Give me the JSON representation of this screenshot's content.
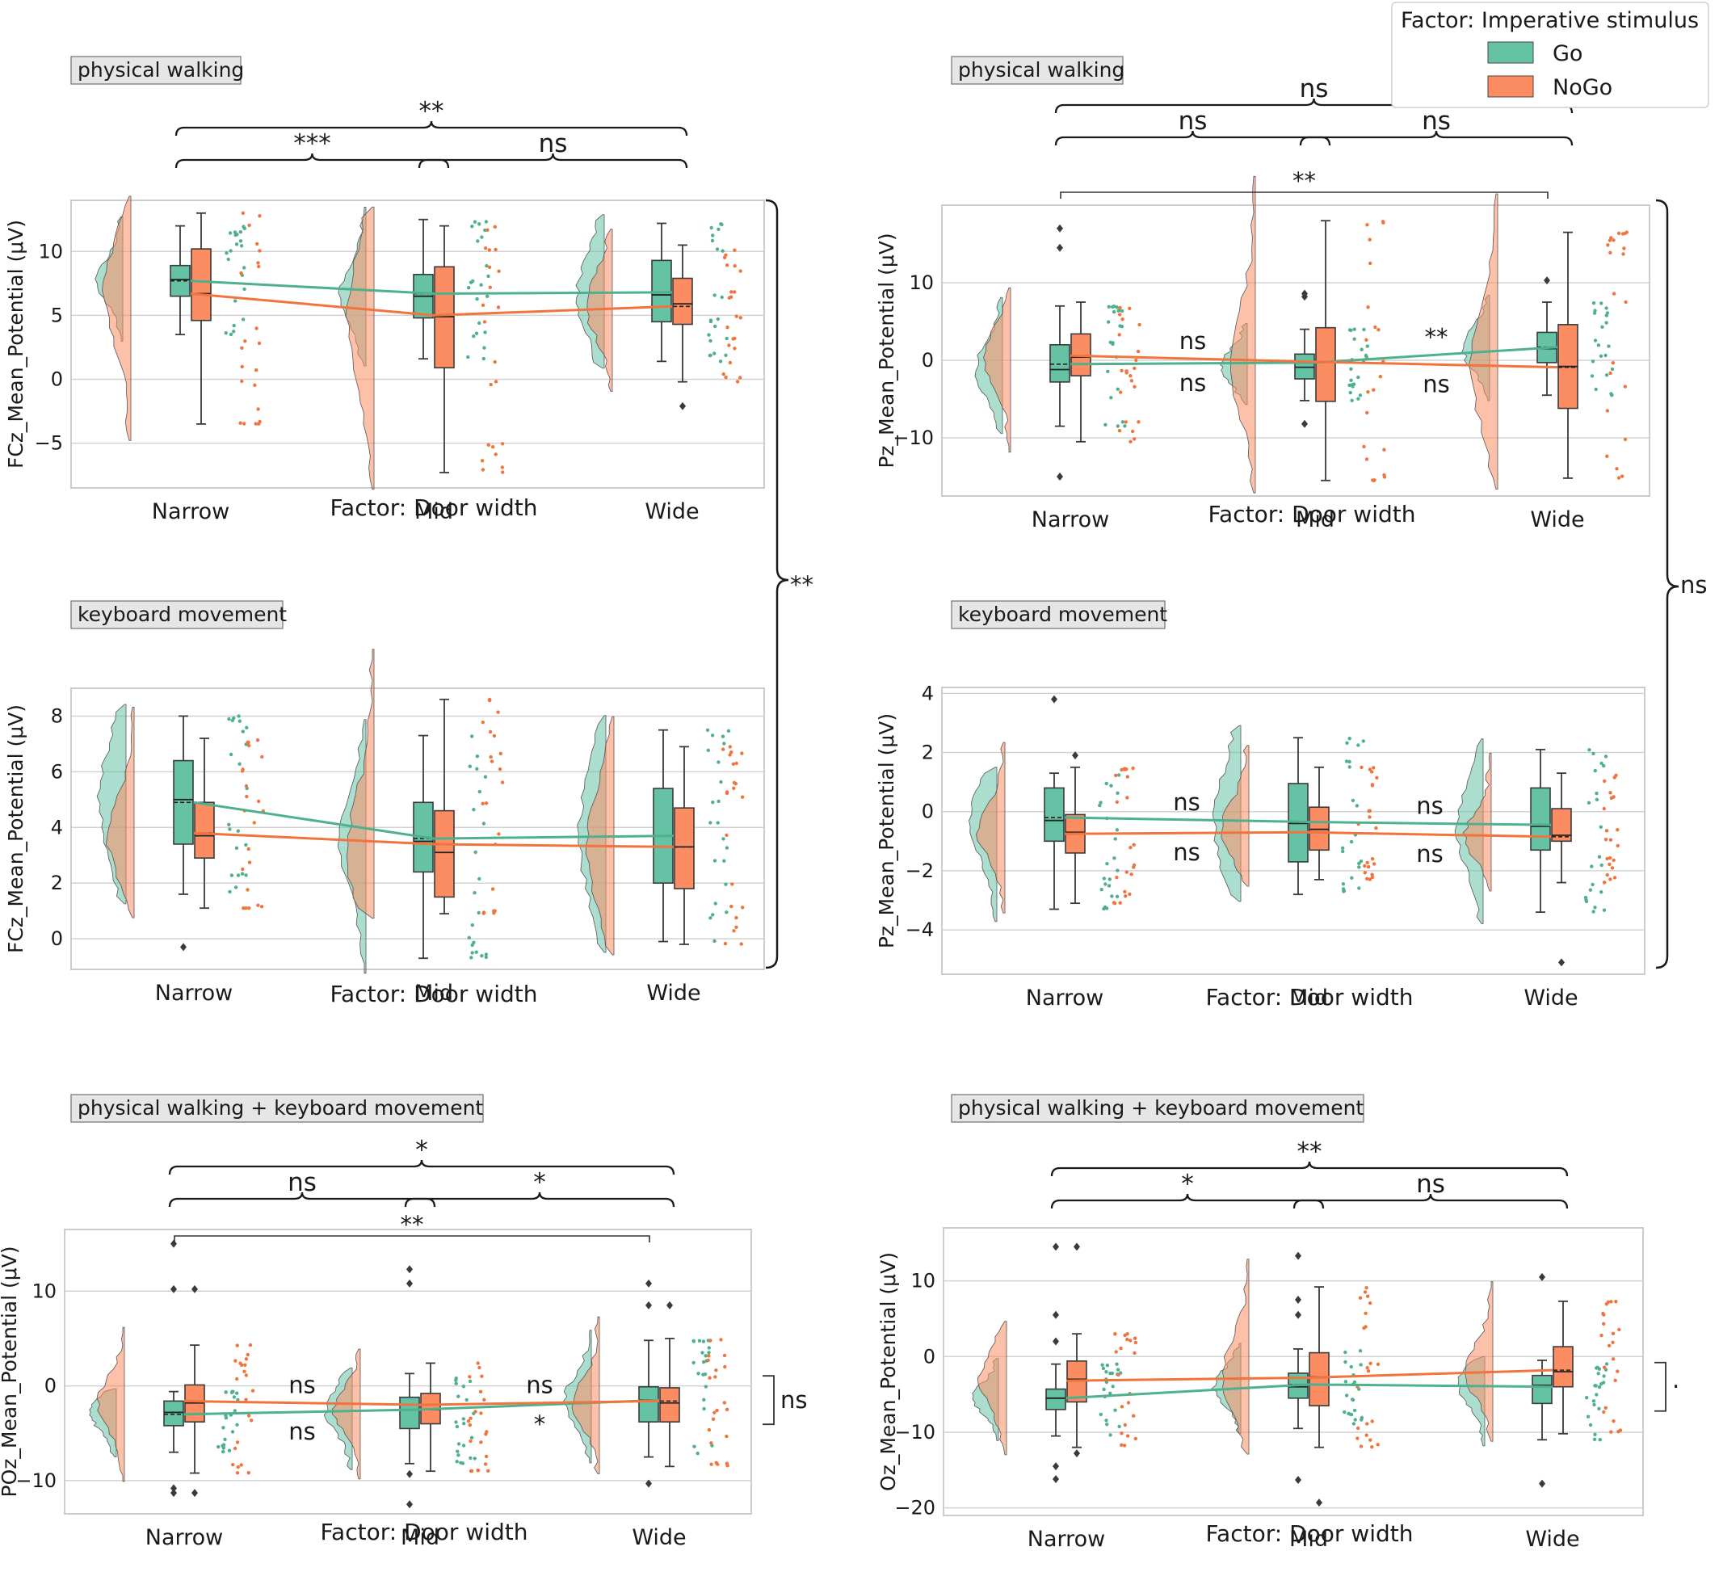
{
  "legend": {
    "title": "Factor: Imperative stimulus",
    "items": [
      {
        "label": "Go",
        "color": "#66c2a5"
      },
      {
        "label": "NoGo",
        "color": "#fc8d62"
      }
    ]
  },
  "colors": {
    "go": "#66c2a5",
    "nogo": "#fc8d62",
    "go_mark": "#4fb08e",
    "nogo_mark": "#f0743e"
  },
  "side_brackets": [
    {
      "label": "**"
    },
    {
      "label": "ns"
    }
  ],
  "chart_data": [
    {
      "type": "raincloud",
      "panel_label": "physical walking",
      "xlabel": "Factor: Door width",
      "ylabel": "FCz_Mean_Potential (μV)",
      "categories": [
        "Narrow",
        "Mid",
        "Wide"
      ],
      "ylim": [
        -8.5,
        14
      ],
      "yticks": [
        10,
        5,
        0,
        -5
      ],
      "ytick_labels": [
        "10",
        "5",
        "0",
        "−5"
      ],
      "grid": true,
      "series": [
        {
          "name": "Go",
          "means": [
            7.7,
            6.7,
            6.8
          ],
          "boxes": [
            {
              "q1": 6.5,
              "median": 7.8,
              "q3": 8.9,
              "lo": 3.5,
              "hi": 12,
              "outliers": []
            },
            {
              "q1": 4.8,
              "median": 6.5,
              "q3": 8.2,
              "lo": 1.6,
              "hi": 12.5,
              "outliers": []
            },
            {
              "q1": 4.5,
              "median": 6.6,
              "q3": 9.3,
              "lo": 1.4,
              "hi": 12.2,
              "outliers": []
            }
          ]
        },
        {
          "name": "NoGo",
          "means": [
            6.7,
            5.0,
            5.7
          ],
          "boxes": [
            {
              "q1": 4.6,
              "median": 6.7,
              "q3": 10.2,
              "lo": -3.5,
              "hi": 13,
              "outliers": []
            },
            {
              "q1": 0.9,
              "median": 4.9,
              "q3": 8.8,
              "lo": -7.3,
              "hi": 12,
              "outliers": []
            },
            {
              "q1": 4.3,
              "median": 5.9,
              "q3": 7.9,
              "lo": -0.2,
              "hi": 10.5,
              "outliers": [
                -2.1
              ]
            }
          ]
        }
      ],
      "annotations": {
        "between": [
          {
            "top": "",
            "bottom": ""
          },
          {
            "top": "",
            "bottom": ""
          }
        ],
        "brackets": [
          {
            "from": "Narrow",
            "to": "Mid",
            "label": "***",
            "level": 1
          },
          {
            "from": "Mid",
            "to": "Wide",
            "label": "ns",
            "level": 1
          },
          {
            "from": "Narrow",
            "to": "Wide",
            "label": "**",
            "level": 2
          }
        ],
        "lines": []
      }
    },
    {
      "type": "raincloud",
      "panel_label": "physical walking",
      "xlabel": "Factor: Door width",
      "ylabel": "Pz_Mean_Potential (μV)",
      "categories": [
        "Narrow",
        "Mid",
        "Wide"
      ],
      "ylim": [
        -17.5,
        20
      ],
      "yticks": [
        10,
        0,
        -10
      ],
      "ytick_labels": [
        "10",
        "0",
        "−10"
      ],
      "grid": true,
      "series": [
        {
          "name": "Go",
          "means": [
            -0.5,
            -0.3,
            1.7
          ],
          "boxes": [
            {
              "q1": -2.8,
              "median": -1.2,
              "q3": 2.0,
              "lo": -8.5,
              "hi": 7.0,
              "outliers": [
                -15,
                14.5,
                17
              ]
            },
            {
              "q1": -2.4,
              "median": -0.9,
              "q3": 0.8,
              "lo": -5.2,
              "hi": 4.0,
              "outliers": [
                -8.2,
                8.2,
                8.6
              ]
            },
            {
              "q1": -0.3,
              "median": 1.5,
              "q3": 3.6,
              "lo": -4.5,
              "hi": 7.5,
              "outliers": [
                10.3
              ]
            }
          ]
        },
        {
          "name": "NoGo",
          "means": [
            0.6,
            -0.2,
            -0.9
          ],
          "boxes": [
            {
              "q1": -2.0,
              "median": 0.4,
              "q3": 3.4,
              "lo": -10.5,
              "hi": 7.5,
              "outliers": []
            },
            {
              "q1": -5.3,
              "median": -0.2,
              "q3": 4.2,
              "lo": -15.5,
              "hi": 18,
              "outliers": []
            },
            {
              "q1": -6.2,
              "median": -0.8,
              "q3": 4.6,
              "lo": -15.2,
              "hi": 16.5,
              "outliers": []
            }
          ]
        }
      ],
      "annotations": {
        "between": [
          {
            "top": "ns",
            "bottom": "ns"
          },
          {
            "top": "**",
            "bottom": "ns"
          }
        ],
        "brackets": [
          {
            "from": "Narrow",
            "to": "Mid",
            "label": "ns",
            "level": 1
          },
          {
            "from": "Mid",
            "to": "Wide",
            "label": "ns",
            "level": 1
          },
          {
            "from": "Narrow",
            "to": "Wide",
            "label": "ns",
            "level": 2
          }
        ],
        "lines": [
          {
            "from": "Narrow",
            "to": "Wide",
            "label": "**"
          }
        ]
      }
    },
    {
      "type": "raincloud",
      "panel_label": "keyboard movement",
      "xlabel": "Factor: Door width",
      "ylabel": "FCz_Mean_Potential (μV)",
      "categories": [
        "Narrow",
        "Mid",
        "Wide"
      ],
      "ylim": [
        -1.1,
        9
      ],
      "yticks": [
        8,
        6,
        4,
        2,
        0
      ],
      "ytick_labels": [
        "8",
        "6",
        "4",
        "2",
        "0"
      ],
      "grid": true,
      "series": [
        {
          "name": "Go",
          "means": [
            4.9,
            3.6,
            3.7
          ],
          "boxes": [
            {
              "q1": 3.4,
              "median": 5.0,
              "q3": 6.4,
              "lo": 1.6,
              "hi": 8.0,
              "outliers": [
                -0.3
              ]
            },
            {
              "q1": 2.4,
              "median": 3.5,
              "q3": 4.9,
              "lo": -0.7,
              "hi": 7.3,
              "outliers": []
            },
            {
              "q1": 2.0,
              "median": 3.7,
              "q3": 5.4,
              "lo": -0.1,
              "hi": 7.5,
              "outliers": []
            }
          ]
        },
        {
          "name": "NoGo",
          "means": [
            3.8,
            3.4,
            3.3
          ],
          "boxes": [
            {
              "q1": 2.9,
              "median": 3.7,
              "q3": 4.9,
              "lo": 1.1,
              "hi": 7.2,
              "outliers": []
            },
            {
              "q1": 1.5,
              "median": 3.1,
              "q3": 4.6,
              "lo": 0.9,
              "hi": 8.6,
              "outliers": []
            },
            {
              "q1": 1.8,
              "median": 3.3,
              "q3": 4.7,
              "lo": -0.2,
              "hi": 6.9,
              "outliers": []
            }
          ]
        }
      ],
      "annotations": {
        "between": [
          {
            "top": "",
            "bottom": ""
          },
          {
            "top": "",
            "bottom": ""
          }
        ],
        "brackets": [],
        "lines": []
      }
    },
    {
      "type": "raincloud",
      "panel_label": "keyboard movement",
      "xlabel": "Factor: Door width",
      "ylabel": "Pz_Mean_Potential (μV)",
      "categories": [
        "Narrow",
        "Mid",
        "Wide"
      ],
      "ylim": [
        -5.5,
        4.2
      ],
      "yticks": [
        4,
        2,
        0,
        -2,
        -4
      ],
      "ytick_labels": [
        "4",
        "2",
        "0",
        "−2",
        "−4"
      ],
      "grid": true,
      "series": [
        {
          "name": "Go",
          "means": [
            -0.2,
            -0.35,
            -0.45
          ],
          "boxes": [
            {
              "q1": -1.0,
              "median": -0.3,
              "q3": 0.8,
              "lo": -3.3,
              "hi": 1.3,
              "outliers": [
                3.8
              ]
            },
            {
              "q1": -1.7,
              "median": -0.4,
              "q3": 0.95,
              "lo": -2.8,
              "hi": 2.5,
              "outliers": []
            },
            {
              "q1": -1.3,
              "median": -0.5,
              "q3": 0.8,
              "lo": -3.4,
              "hi": 2.1,
              "outliers": []
            }
          ]
        },
        {
          "name": "NoGo",
          "means": [
            -0.75,
            -0.7,
            -0.85
          ],
          "boxes": [
            {
              "q1": -1.4,
              "median": -0.7,
              "q3": -0.1,
              "lo": -3.1,
              "hi": 1.5,
              "outliers": [
                1.9
              ]
            },
            {
              "q1": -1.3,
              "median": -0.6,
              "q3": 0.15,
              "lo": -2.3,
              "hi": 1.5,
              "outliers": []
            },
            {
              "q1": -1.0,
              "median": -0.8,
              "q3": 0.1,
              "lo": -2.4,
              "hi": 1.3,
              "outliers": [
                -5.1
              ]
            }
          ]
        }
      ],
      "annotations": {
        "between": [
          {
            "top": "ns",
            "bottom": "ns"
          },
          {
            "top": "ns",
            "bottom": "ns"
          }
        ],
        "brackets": [],
        "lines": []
      }
    },
    {
      "type": "raincloud",
      "panel_label": "physical walking + keyboard movement",
      "xlabel": "Factor: Door width",
      "ylabel": "POz_Mean_Potential (μV)",
      "categories": [
        "Narrow",
        "Mid",
        "Wide"
      ],
      "ylim": [
        -13.5,
        16.5
      ],
      "yticks": [
        10,
        0,
        -10
      ],
      "ytick_labels": [
        "10",
        "0",
        "−10"
      ],
      "grid": true,
      "series": [
        {
          "name": "Go",
          "means": [
            -3.0,
            -2.5,
            -1.5
          ],
          "boxes": [
            {
              "q1": -4.2,
              "median": -2.8,
              "q3": -1.6,
              "lo": -7.0,
              "hi": -0.6,
              "outliers": [
                -11.3,
                -10.8,
                10.2,
                15
              ]
            },
            {
              "q1": -4.5,
              "median": -2.5,
              "q3": -1.2,
              "lo": -8.2,
              "hi": 1.3,
              "outliers": [
                -12.5,
                -9.3,
                10.8,
                12.3
              ]
            },
            {
              "q1": -3.8,
              "median": -1.5,
              "q3": -0.1,
              "lo": -7.5,
              "hi": 4.8,
              "outliers": [
                -10.3,
                8.5,
                10.8
              ]
            }
          ]
        },
        {
          "name": "NoGo",
          "means": [
            -1.6,
            -2.0,
            -1.6
          ],
          "boxes": [
            {
              "q1": -3.8,
              "median": -1.8,
              "q3": 0.1,
              "lo": -9.2,
              "hi": 4.3,
              "outliers": [
                -11.3,
                10.2
              ]
            },
            {
              "q1": -4.0,
              "median": -2.5,
              "q3": -0.8,
              "lo": -9.0,
              "hi": 2.4,
              "outliers": []
            },
            {
              "q1": -3.8,
              "median": -1.8,
              "q3": -0.2,
              "lo": -8.5,
              "hi": 5.0,
              "outliers": [
                8.5
              ]
            }
          ]
        }
      ],
      "annotations": {
        "between": [
          {
            "top": "ns",
            "bottom": "ns"
          },
          {
            "top": "ns",
            "bottom": "*"
          }
        ],
        "brackets": [
          {
            "from": "Narrow",
            "to": "Mid",
            "label": "ns",
            "level": 1
          },
          {
            "from": "Mid",
            "to": "Wide",
            "label": "*",
            "level": 1
          },
          {
            "from": "Narrow",
            "to": "Wide",
            "label": "*",
            "level": 2
          }
        ],
        "lines": [
          {
            "from": "Narrow",
            "to": "Wide",
            "label": "**"
          }
        ],
        "right_bracket": {
          "label": "ns"
        }
      }
    },
    {
      "type": "raincloud",
      "panel_label": "physical walking + keyboard movement",
      "xlabel": "Factor: Door width",
      "ylabel": "Oz_Mean_Potential (μV)",
      "categories": [
        "Narrow",
        "Mid",
        "Wide"
      ],
      "ylim": [
        -21,
        17
      ],
      "yticks": [
        10,
        0,
        -10,
        -20
      ],
      "ytick_labels": [
        "10",
        "0",
        "−10",
        "−20"
      ],
      "grid": true,
      "series": [
        {
          "name": "Go",
          "means": [
            -5.5,
            -3.7,
            -4.0
          ],
          "boxes": [
            {
              "q1": -7.0,
              "median": -5.5,
              "q3": -4.3,
              "lo": -10.5,
              "hi": -1.0,
              "outliers": [
                -16.2,
                -14.5,
                2.0,
                5.5,
                14.5
              ]
            },
            {
              "q1": -5.5,
              "median": -4.0,
              "q3": -2.2,
              "lo": -9.5,
              "hi": 1.0,
              "outliers": [
                -16.3,
                5.5,
                7.5,
                13.3
              ]
            },
            {
              "q1": -6.2,
              "median": -3.8,
              "q3": -2.5,
              "lo": -11.0,
              "hi": -0.5,
              "outliers": [
                -16.8,
                10.5
              ]
            }
          ]
        },
        {
          "name": "NoGo",
          "means": [
            -3.2,
            -2.8,
            -1.8
          ],
          "boxes": [
            {
              "q1": -6.0,
              "median": -3.0,
              "q3": -0.6,
              "lo": -12.0,
              "hi": 3.0,
              "outliers": [
                -12.8,
                14.5
              ]
            },
            {
              "q1": -6.5,
              "median": -2.7,
              "q3": 0.5,
              "lo": -12.0,
              "hi": 9.2,
              "outliers": [
                -19.3
              ]
            },
            {
              "q1": -4.0,
              "median": -2.0,
              "q3": 1.3,
              "lo": -10.2,
              "hi": 7.3,
              "outliers": []
            }
          ]
        }
      ],
      "annotations": {
        "between": [
          {
            "top": "",
            "bottom": ""
          },
          {
            "top": "",
            "bottom": ""
          }
        ],
        "brackets": [
          {
            "from": "Narrow",
            "to": "Mid",
            "label": "*",
            "level": 1
          },
          {
            "from": "Mid",
            "to": "Wide",
            "label": "ns",
            "level": 1
          },
          {
            "from": "Narrow",
            "to": "Wide",
            "label": "**",
            "level": 2
          }
        ],
        "lines": [],
        "right_bracket": {
          "label": "·"
        }
      }
    }
  ]
}
